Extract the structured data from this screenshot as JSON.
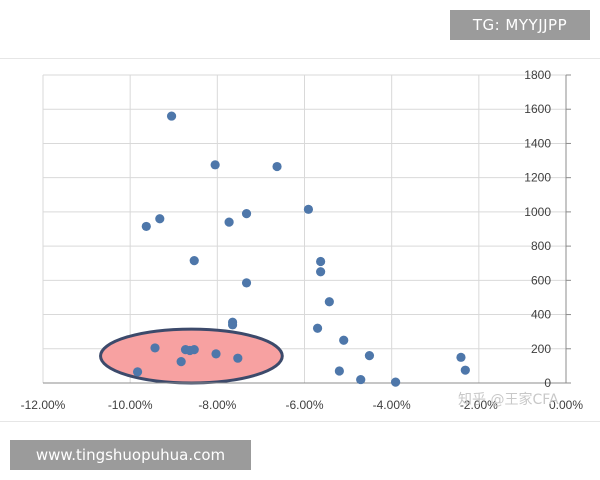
{
  "header": {
    "tg_label": "TG: MYYJJPP"
  },
  "footer": {
    "url_label": "www.tingshuopuhua.com"
  },
  "watermark": {
    "text": "知乎 @王家CFA"
  },
  "chart_data": {
    "type": "scatter",
    "title": "",
    "xlabel": "",
    "ylabel": "",
    "x_axis_position": "bottom",
    "y_axis_position": "right",
    "xlim": [
      -0.12,
      0.0
    ],
    "ylim": [
      0,
      1800
    ],
    "x_ticks": [
      -0.12,
      -0.1,
      -0.08,
      -0.06,
      -0.04,
      -0.02,
      0.0
    ],
    "x_tick_labels": [
      "-12.00%",
      "-10.00%",
      "-8.00%",
      "-6.00%",
      "-4.00%",
      "-2.00%",
      "0.00%"
    ],
    "y_ticks": [
      0,
      200,
      400,
      600,
      800,
      1000,
      1200,
      1400,
      1600,
      1800
    ],
    "y_tick_labels": [
      "0",
      "200",
      "400",
      "600",
      "800",
      "1000",
      "1200",
      "1400",
      "1600",
      "1800"
    ],
    "grid": true,
    "marker_color": "#4e77aa",
    "series": [
      {
        "points": [
          {
            "x": -0.0905,
            "y": 1560
          },
          {
            "x": -0.0805,
            "y": 1275
          },
          {
            "x": -0.0663,
            "y": 1265
          },
          {
            "x": -0.0733,
            "y": 990
          },
          {
            "x": -0.0591,
            "y": 1015
          },
          {
            "x": -0.0932,
            "y": 960
          },
          {
            "x": -0.0963,
            "y": 915
          },
          {
            "x": -0.0773,
            "y": 940
          },
          {
            "x": -0.0853,
            "y": 715
          },
          {
            "x": -0.0563,
            "y": 710
          },
          {
            "x": -0.0563,
            "y": 650
          },
          {
            "x": -0.0733,
            "y": 585
          },
          {
            "x": -0.0543,
            "y": 475
          },
          {
            "x": -0.0765,
            "y": 355
          },
          {
            "x": -0.0765,
            "y": 340
          },
          {
            "x": -0.057,
            "y": 320
          },
          {
            "x": -0.051,
            "y": 250
          },
          {
            "x": -0.0943,
            "y": 205
          },
          {
            "x": -0.0873,
            "y": 195
          },
          {
            "x": -0.0863,
            "y": 190
          },
          {
            "x": -0.0853,
            "y": 195
          },
          {
            "x": -0.0803,
            "y": 170
          },
          {
            "x": -0.0753,
            "y": 145
          },
          {
            "x": -0.0883,
            "y": 125
          },
          {
            "x": -0.0983,
            "y": 65
          },
          {
            "x": -0.052,
            "y": 70
          },
          {
            "x": -0.0451,
            "y": 160
          },
          {
            "x": -0.0471,
            "y": 20
          },
          {
            "x": -0.0391,
            "y": 5
          },
          {
            "x": -0.0241,
            "y": 150
          },
          {
            "x": -0.0231,
            "y": 75
          }
        ]
      }
    ],
    "highlight": {
      "shape": "ellipse",
      "x_range": [
        -0.1068,
        -0.0651
      ],
      "y_range": [
        0,
        315
      ],
      "fill": "#f7a1a1",
      "stroke": "#3c4a6b"
    }
  }
}
